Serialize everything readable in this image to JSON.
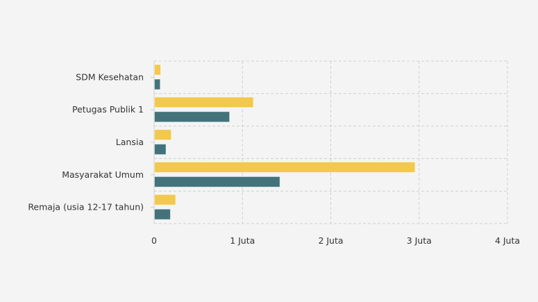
{
  "chart_data": {
    "type": "bar",
    "orientation": "horizontal",
    "title": "",
    "xlabel": "",
    "ylabel": "",
    "categories": [
      "SDM Kesehatan",
      "Petugas Publik 1",
      "Lansia",
      "Masyarakat Umum",
      "Remaja (usia 12-17 tahun)"
    ],
    "series": [
      {
        "name": "Series 1",
        "color": "#f2c94c",
        "values": [
          0.07,
          1.12,
          0.19,
          2.95,
          0.24
        ]
      },
      {
        "name": "Series 2",
        "color": "#43727a",
        "values": [
          0.065,
          0.85,
          0.13,
          1.42,
          0.18
        ]
      }
    ],
    "xlim": [
      0,
      4
    ],
    "xticks": [
      0,
      1,
      2,
      3,
      4
    ],
    "xtick_labels": [
      "0",
      "1 Juta",
      "2 Juta",
      "3 Juta",
      "4 Juta"
    ],
    "unit": "million",
    "grid": true,
    "legend": "none"
  }
}
